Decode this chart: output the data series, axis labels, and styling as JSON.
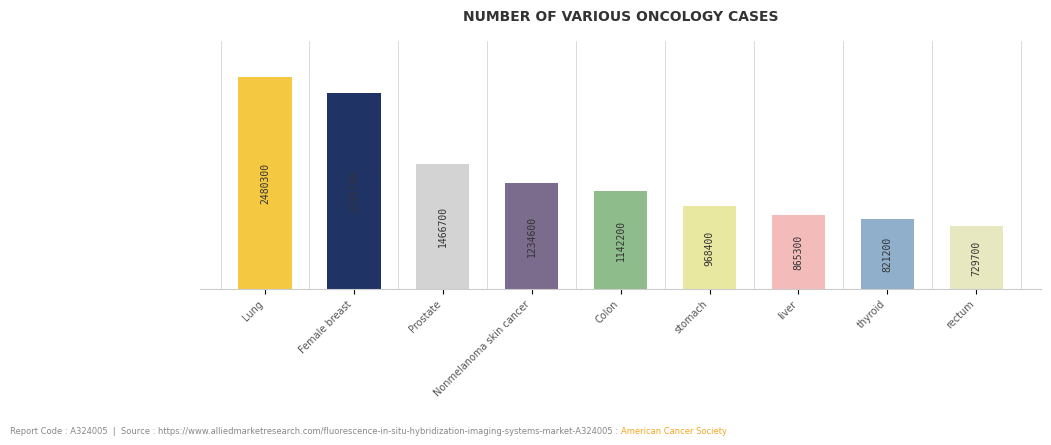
{
  "title": "NUMBER OF VARIOUS ONCOLOGY CASES",
  "categories": [
    "Lung",
    "Female breast",
    "Prostate",
    "Nonmelanoma skin cancer",
    "Colon",
    "stomach",
    "liver",
    "thyroid",
    "rectum"
  ],
  "values": [
    2480300,
    2295700,
    1466700,
    1234600,
    1142200,
    968400,
    865300,
    821200,
    729700
  ],
  "bar_colors": [
    "#F5C842",
    "#1F3464",
    "#D3D3D3",
    "#7B6B8D",
    "#8FBC8B",
    "#E8E8A0",
    "#F4BBBB",
    "#8FAFCA",
    "#E8E8C0"
  ],
  "value_labels": [
    "2480300",
    "2295700",
    "1466700",
    "1234600",
    "1142200",
    "968400",
    "865300",
    "821200",
    "729700"
  ],
  "footer_text": "Report Code : A324005  |  Source : https://www.alliedmarketresearch.com/fluorescence-in-situ-hybridization-imaging-systems-market-A324005 : ",
  "footer_highlight": "American Cancer Society",
  "footer_highlight_color": "#F5A623",
  "footer_text_color": "#888888",
  "background_color": "#FFFFFF",
  "title_fontsize": 10,
  "label_fontsize": 7,
  "tick_fontsize": 7,
  "footer_fontsize": 6,
  "ylim": [
    0,
    2900000
  ]
}
